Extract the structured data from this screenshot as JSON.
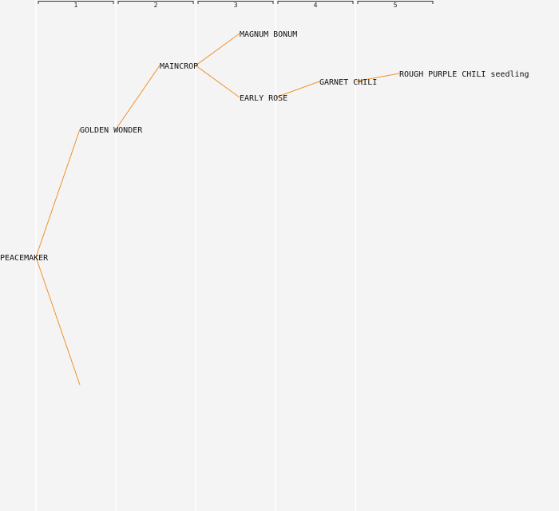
{
  "generations": [
    "1",
    "2",
    "3",
    "4",
    "5"
  ],
  "colors": {
    "background": "#f4f4f4",
    "column_line": "#ffffff",
    "bracket": "#333333",
    "edge": "#f0922a",
    "text": "#111111"
  },
  "tree": {
    "root": {
      "name": "PEACEMAKER",
      "generation": 0,
      "parents": [
        {
          "name": "GOLDEN WONDER",
          "generation": 1,
          "parents": [
            {
              "name": "MAINCROP",
              "generation": 2,
              "parents": [
                {
                  "name": "MAGNUM BONUM",
                  "generation": 3,
                  "parents": []
                },
                {
                  "name": "EARLY ROSE",
                  "generation": 3,
                  "parents": [
                    {
                      "name": "GARNET CHILI",
                      "generation": 4,
                      "parents": [
                        {
                          "name": "ROUGH PURPLE CHILI seedling",
                          "generation": 5,
                          "parents": []
                        }
                      ]
                    }
                  ]
                }
              ]
            }
          ]
        },
        {
          "name": "",
          "generation": 1,
          "parents": []
        }
      ]
    }
  }
}
